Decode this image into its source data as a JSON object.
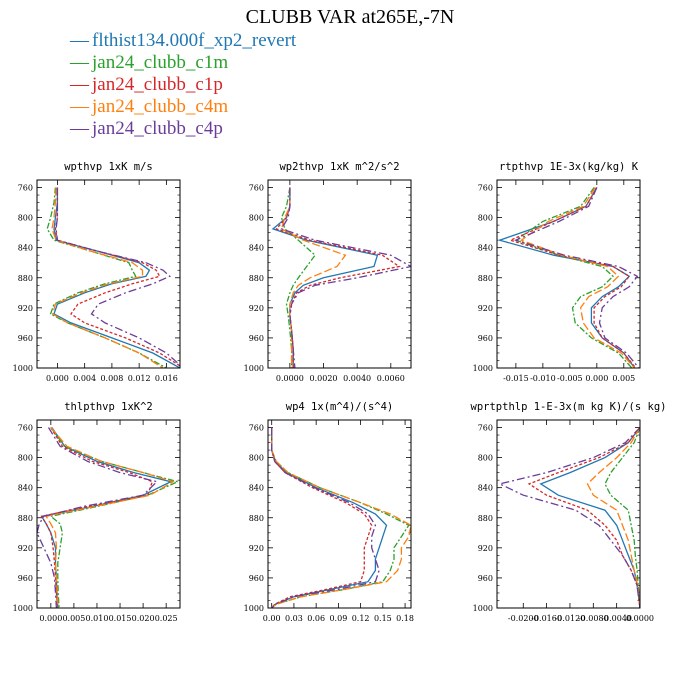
{
  "title": "CLUBB VAR at265E,-7N",
  "legend": [
    {
      "label": "flthist134.000f_xp2_revert",
      "color": "#1f77b4",
      "dash": ""
    },
    {
      "label": "jan24_clubb_c1m",
      "color": "#2ca02c",
      "dash": "6,2,2,2"
    },
    {
      "label": "jan24_clubb_c1p",
      "color": "#d62728",
      "dash": "3,2"
    },
    {
      "label": "jan24_clubb_c4m",
      "color": "#ff7f0e",
      "dash": "8,3"
    },
    {
      "label": "jan24_clubb_c4p",
      "color": "#6a3d9a",
      "dash": "8,3,2,3"
    }
  ],
  "chart_data": [
    {
      "type": "line",
      "title": "wpthvp  1xK m/s",
      "ylim": [
        1000,
        750
      ],
      "yticks": [
        "760",
        "800",
        "840",
        "880",
        "920",
        "960",
        "1000"
      ],
      "yticks_values": [
        760,
        800,
        840,
        880,
        920,
        960,
        1000
      ],
      "xlim": [
        -0.003,
        0.018
      ],
      "xticks": [
        "0.000",
        "0.004",
        "0.008",
        "0.012",
        "0.016"
      ],
      "xticks_values": [
        0.0,
        0.004,
        0.008,
        0.012,
        0.016
      ],
      "y": [
        760,
        780,
        800,
        815,
        830,
        845,
        860,
        870,
        878,
        888,
        900,
        915,
        928,
        940,
        960,
        980,
        1000
      ],
      "series": [
        {
          "values": [
            0.0,
            0.0,
            -0.0003,
            -0.0005,
            -0.0002,
            0.006,
            0.012,
            0.0135,
            0.013,
            0.008,
            0.004,
            0.0,
            -0.0005,
            0.002,
            0.008,
            0.014,
            0.018
          ]
        },
        {
          "values": [
            -0.0003,
            -0.0005,
            -0.001,
            -0.0015,
            -0.0005,
            0.005,
            0.0105,
            0.011,
            0.0115,
            0.007,
            0.003,
            -0.0005,
            -0.001,
            0.0015,
            0.007,
            0.012,
            0.016
          ]
        },
        {
          "values": [
            0.0,
            0.0,
            0.0,
            -0.0003,
            0.0,
            0.006,
            0.0125,
            0.0145,
            0.015,
            0.011,
            0.007,
            0.003,
            0.002,
            0.004,
            0.01,
            0.015,
            0.0185
          ]
        },
        {
          "values": [
            -0.0002,
            -0.0003,
            -0.0005,
            -0.0008,
            -0.0002,
            0.005,
            0.011,
            0.0125,
            0.0125,
            0.0075,
            0.0035,
            -0.0003,
            -0.0007,
            0.0015,
            0.007,
            0.012,
            0.0155
          ]
        },
        {
          "values": [
            0.0,
            0.0,
            0.0,
            -0.0002,
            0.0,
            0.006,
            0.013,
            0.0155,
            0.0165,
            0.014,
            0.01,
            0.006,
            0.005,
            0.007,
            0.012,
            0.016,
            0.0185
          ]
        }
      ]
    },
    {
      "type": "line",
      "title": "wp2thvp  1xK m^2/s^2",
      "ylim": [
        1000,
        750
      ],
      "yticks": [
        "760",
        "800",
        "840",
        "880",
        "920",
        "960",
        "1000"
      ],
      "yticks_values": [
        760,
        800,
        840,
        880,
        920,
        960,
        1000
      ],
      "xlim": [
        -0.0013,
        0.0072
      ],
      "xticks": [
        "0.0000",
        "0.0020",
        "0.0040",
        "0.0060"
      ],
      "xticks_values": [
        0.0,
        0.002,
        0.004,
        0.006
      ],
      "y": [
        760,
        785,
        800,
        815,
        830,
        850,
        865,
        880,
        890,
        900,
        915,
        930,
        950,
        975,
        1000
      ],
      "series": [
        {
          "values": [
            0.0,
            0.0,
            -0.0002,
            -0.001,
            0.001,
            0.0052,
            0.005,
            0.002,
            0.0008,
            0.0003,
            0.0,
            0.0,
            0.0001,
            0.0002,
            0.0002
          ]
        },
        {
          "values": [
            0.0,
            -0.0002,
            -0.0005,
            -0.0003,
            0.0005,
            0.0015,
            0.001,
            0.0005,
            0.0002,
            0.0,
            -0.0002,
            -0.0001,
            0.0,
            0.0001,
            0.0001
          ]
        },
        {
          "values": [
            0.0,
            0.0,
            -0.0002,
            -0.0008,
            0.0012,
            0.0055,
            0.0065,
            0.003,
            0.0012,
            0.0004,
            0.0001,
            0.0,
            0.0001,
            0.0002,
            0.0002
          ]
        },
        {
          "values": [
            0.0,
            0.0,
            -0.0003,
            -0.0005,
            0.0008,
            0.0033,
            0.0028,
            0.0012,
            0.0005,
            0.0002,
            0.0,
            0.0,
            0.0001,
            0.0001,
            0.0001
          ]
        },
        {
          "values": [
            0.0,
            0.0,
            -0.0001,
            -0.0005,
            0.0015,
            0.006,
            0.0072,
            0.004,
            0.0015,
            0.0005,
            0.0001,
            0.0,
            0.0001,
            0.0002,
            0.0003
          ]
        }
      ]
    },
    {
      "type": "line",
      "title": "rtpthvp  1E-3x(kg/kg) K",
      "ylim": [
        1000,
        750
      ],
      "yticks": [
        "760",
        "800",
        "840",
        "880",
        "920",
        "960",
        "1000"
      ],
      "yticks_values": [
        760,
        800,
        840,
        880,
        920,
        960,
        1000
      ],
      "xlim": [
        -0.0185,
        0.008
      ],
      "xticks": [
        "-0.015",
        "-0.010",
        "-0.005",
        "0.000",
        "0.005"
      ],
      "xticks_values": [
        -0.015,
        -0.01,
        -0.005,
        0.0,
        0.005
      ],
      "y": [
        760,
        785,
        805,
        830,
        850,
        865,
        878,
        892,
        905,
        920,
        940,
        960,
        980,
        1000
      ],
      "series": [
        {
          "values": [
            0.0,
            -0.002,
            -0.008,
            -0.018,
            -0.008,
            0.003,
            0.006,
            0.004,
            0.001,
            -0.001,
            -0.001,
            0.001,
            0.005,
            0.007
          ]
        },
        {
          "values": [
            -0.0005,
            -0.003,
            -0.01,
            -0.015,
            -0.007,
            0.001,
            0.003,
            0.001,
            -0.003,
            -0.0045,
            -0.004,
            -0.001,
            0.004,
            0.0065
          ]
        },
        {
          "values": [
            0.0,
            -0.002,
            -0.008,
            -0.016,
            -0.007,
            0.003,
            0.006,
            0.0045,
            0.0015,
            -0.0005,
            -0.0005,
            0.001,
            0.005,
            0.0072
          ]
        },
        {
          "values": [
            -0.0003,
            -0.0025,
            -0.009,
            -0.014,
            -0.0065,
            0.002,
            0.004,
            0.002,
            -0.0015,
            -0.003,
            -0.0025,
            -0.0005,
            0.0045,
            0.007
          ]
        },
        {
          "values": [
            0.0,
            -0.0015,
            -0.007,
            -0.015,
            -0.006,
            0.004,
            0.0075,
            0.006,
            0.003,
            0.001,
            0.0005,
            0.0015,
            0.0055,
            0.0078
          ]
        }
      ]
    },
    {
      "type": "line",
      "title": "thlpthvp  1xK^2",
      "ylim": [
        1000,
        750
      ],
      "yticks": [
        "760",
        "800",
        "840",
        "880",
        "920",
        "960",
        "1000"
      ],
      "yticks_values": [
        760,
        800,
        840,
        880,
        920,
        960,
        1000
      ],
      "xlim": [
        -0.003,
        0.028
      ],
      "xticks": [
        "0.000",
        "0.005",
        "0.010",
        "0.015",
        "0.020",
        "0.025"
      ],
      "xticks_values": [
        0.0,
        0.005,
        0.01,
        0.015,
        0.02,
        0.025
      ],
      "y": [
        760,
        785,
        805,
        820,
        832,
        850,
        865,
        878,
        888,
        900,
        920,
        940,
        960,
        980,
        1000
      ],
      "series": [
        {
          "values": [
            0.0002,
            0.003,
            0.01,
            0.018,
            0.026,
            0.02,
            0.009,
            -0.002,
            -0.001,
            0.0,
            0.001,
            0.001,
            0.0012,
            0.0013,
            0.0015
          ]
        },
        {
          "values": [
            0.0,
            0.003,
            0.011,
            0.02,
            0.0275,
            0.021,
            0.01,
            0.0,
            0.002,
            0.0025,
            0.002,
            0.0015,
            0.0015,
            0.0016,
            0.0018
          ]
        },
        {
          "values": [
            0.0,
            0.0025,
            0.009,
            0.017,
            0.022,
            0.021,
            0.008,
            -0.002,
            -0.001,
            0.0,
            0.0005,
            0.0008,
            0.001,
            0.0012,
            0.0015
          ]
        },
        {
          "values": [
            0.0,
            0.0035,
            0.011,
            0.02,
            0.0265,
            0.0215,
            0.0095,
            -0.001,
            0.0,
            0.001,
            0.0012,
            0.001,
            0.0012,
            0.0014,
            0.0016
          ]
        },
        {
          "values": [
            -0.0005,
            0.002,
            0.008,
            0.015,
            0.023,
            0.02,
            0.007,
            -0.0015,
            -0.0025,
            -0.003,
            -0.0015,
            0.0,
            0.0008,
            0.001,
            0.0012
          ]
        }
      ]
    },
    {
      "type": "line",
      "title": "wp4  1x(m^4)/(s^4)",
      "ylim": [
        1000,
        750
      ],
      "yticks": [
        "760",
        "800",
        "840",
        "880",
        "920",
        "960",
        "1000"
      ],
      "yticks_values": [
        760,
        800,
        840,
        880,
        920,
        960,
        1000
      ],
      "xlim": [
        -0.005,
        0.188
      ],
      "xticks": [
        "0.00",
        "0.03",
        "0.06",
        "0.09",
        "0.12",
        "0.15",
        "0.18"
      ],
      "xticks_values": [
        0.0,
        0.03,
        0.06,
        0.09,
        0.12,
        0.15,
        0.18
      ],
      "y": [
        760,
        790,
        805,
        820,
        840,
        860,
        875,
        890,
        905,
        920,
        935,
        950,
        965,
        975,
        985,
        995,
        1000
      ],
      "series": [
        {
          "values": [
            0.0,
            0.0,
            0.005,
            0.02,
            0.06,
            0.11,
            0.14,
            0.155,
            0.15,
            0.145,
            0.14,
            0.14,
            0.13,
            0.08,
            0.03,
            0.005,
            0.0
          ]
        },
        {
          "values": [
            0.0,
            0.0,
            0.006,
            0.022,
            0.065,
            0.12,
            0.155,
            0.185,
            0.175,
            0.165,
            0.165,
            0.16,
            0.15,
            0.1,
            0.04,
            0.006,
            0.0
          ]
        },
        {
          "values": [
            0.0,
            0.0,
            0.004,
            0.018,
            0.055,
            0.1,
            0.125,
            0.135,
            0.13,
            0.125,
            0.125,
            0.125,
            0.12,
            0.075,
            0.025,
            0.004,
            0.0
          ]
        },
        {
          "values": [
            0.0,
            0.0,
            0.006,
            0.022,
            0.065,
            0.12,
            0.16,
            0.188,
            0.185,
            0.175,
            0.175,
            0.17,
            0.155,
            0.1,
            0.04,
            0.006,
            0.0
          ]
        },
        {
          "values": [
            0.0,
            0.0,
            0.004,
            0.018,
            0.058,
            0.105,
            0.13,
            0.14,
            0.135,
            0.135,
            0.14,
            0.145,
            0.14,
            0.09,
            0.03,
            0.005,
            0.0
          ]
        }
      ]
    },
    {
      "type": "line",
      "title": "wprtpthlp  1-E-3x(m kg K)/(s kg)",
      "ylim": [
        1000,
        750
      ],
      "yticks": [
        "760",
        "800",
        "840",
        "880",
        "920",
        "960",
        "1000"
      ],
      "yticks_values": [
        760,
        800,
        840,
        880,
        920,
        960,
        1000
      ],
      "xlim": [
        -0.0245,
        0.0
      ],
      "xticks": [
        "-0.0200",
        "-0.0160",
        "-0.0120",
        "-0.0080",
        "-0.0040",
        "0.0000"
      ],
      "xticks_values": [
        -0.02,
        -0.016,
        -0.012,
        -0.008,
        -0.004,
        0.0
      ],
      "y": [
        760,
        780,
        800,
        820,
        835,
        850,
        870,
        890,
        910,
        930,
        950,
        970,
        1000
      ],
      "series": [
        {
          "values": [
            0.0,
            -0.002,
            -0.006,
            -0.012,
            -0.017,
            -0.014,
            -0.006,
            -0.004,
            -0.003,
            -0.002,
            -0.001,
            -0.0005,
            0.0
          ]
        },
        {
          "values": [
            0.0,
            -0.001,
            -0.003,
            -0.005,
            -0.006,
            -0.005,
            -0.002,
            -0.0015,
            -0.001,
            -0.0008,
            -0.0005,
            -0.0003,
            0.0
          ]
        },
        {
          "values": [
            0.0,
            -0.002,
            -0.007,
            -0.014,
            -0.019,
            -0.016,
            -0.009,
            -0.006,
            -0.004,
            -0.003,
            -0.0015,
            -0.0005,
            0.0
          ]
        },
        {
          "values": [
            0.0,
            -0.0015,
            -0.004,
            -0.007,
            -0.009,
            -0.008,
            -0.004,
            -0.003,
            -0.002,
            -0.0015,
            -0.001,
            -0.0004,
            0.0
          ]
        },
        {
          "values": [
            0.0,
            -0.0025,
            -0.008,
            -0.016,
            -0.024,
            -0.02,
            -0.011,
            -0.007,
            -0.005,
            -0.003,
            -0.0015,
            -0.0005,
            0.0
          ]
        }
      ]
    }
  ]
}
